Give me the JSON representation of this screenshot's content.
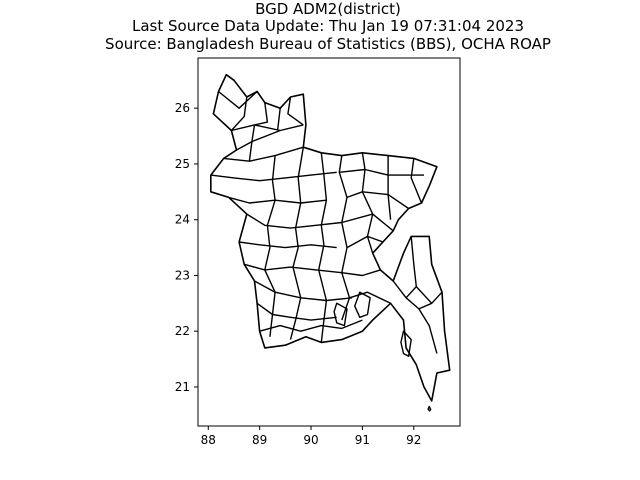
{
  "figure": {
    "title_lines": [
      "BGD ADM2(district)",
      "Last Source Data Update: Thu Jan 19 07:31:04 2023",
      "Source: Bangladesh Bureau of Statistics (BBS), OCHA ROAP"
    ]
  },
  "chart_data": {
    "type": "map",
    "title": "BGD ADM2(district)",
    "subtitle": [
      "Last Source Data Update: Thu Jan 19 07:31:04 2023",
      "Source: Bangladesh Bureau of Statistics (BBS), OCHA ROAP"
    ],
    "xlim": [
      87.8,
      92.9
    ],
    "ylim": [
      20.3,
      26.9
    ],
    "x_ticks": [
      88,
      89,
      90,
      91,
      92
    ],
    "y_ticks": [
      21,
      22,
      23,
      24,
      25,
      26
    ],
    "x_tick_labels": [
      "88",
      "89",
      "90",
      "91",
      "92"
    ],
    "y_tick_labels": [
      "21",
      "22",
      "23",
      "24",
      "25",
      "26"
    ],
    "xlabel": "",
    "ylabel": "",
    "outline": [
      [
        88.35,
        26.6
      ],
      [
        88.5,
        26.5
      ],
      [
        88.75,
        26.2
      ],
      [
        88.95,
        26.3
      ],
      [
        89.1,
        26.1
      ],
      [
        89.4,
        26.0
      ],
      [
        89.6,
        26.2
      ],
      [
        89.85,
        26.25
      ],
      [
        89.9,
        25.7
      ],
      [
        89.85,
        25.3
      ],
      [
        90.2,
        25.2
      ],
      [
        90.6,
        25.15
      ],
      [
        91.0,
        25.2
      ],
      [
        91.5,
        25.15
      ],
      [
        92.0,
        25.1
      ],
      [
        92.45,
        24.95
      ],
      [
        92.3,
        24.6
      ],
      [
        92.15,
        24.3
      ],
      [
        91.9,
        24.2
      ],
      [
        91.7,
        24.0
      ],
      [
        91.6,
        23.8
      ],
      [
        91.4,
        23.6
      ],
      [
        91.2,
        23.4
      ],
      [
        91.35,
        23.1
      ],
      [
        91.6,
        22.9
      ],
      [
        91.8,
        23.4
      ],
      [
        91.95,
        23.7
      ],
      [
        92.3,
        23.7
      ],
      [
        92.35,
        23.2
      ],
      [
        92.55,
        22.7
      ],
      [
        92.6,
        22.0
      ],
      [
        92.7,
        21.3
      ],
      [
        92.45,
        21.25
      ],
      [
        92.35,
        20.75
      ],
      [
        92.2,
        21.0
      ],
      [
        92.05,
        21.4
      ],
      [
        91.85,
        21.7
      ],
      [
        91.8,
        22.2
      ],
      [
        91.55,
        22.5
      ],
      [
        91.2,
        22.2
      ],
      [
        91.0,
        22.0
      ],
      [
        90.6,
        21.85
      ],
      [
        90.2,
        21.8
      ],
      [
        89.9,
        21.9
      ],
      [
        89.5,
        21.75
      ],
      [
        89.1,
        21.7
      ],
      [
        89.0,
        22.0
      ],
      [
        88.95,
        22.5
      ],
      [
        88.9,
        22.9
      ],
      [
        88.7,
        23.2
      ],
      [
        88.6,
        23.6
      ],
      [
        88.75,
        24.1
      ],
      [
        88.4,
        24.4
      ],
      [
        88.05,
        24.5
      ],
      [
        88.05,
        24.8
      ],
      [
        88.3,
        25.1
      ],
      [
        88.55,
        25.25
      ],
      [
        88.45,
        25.6
      ],
      [
        88.1,
        25.9
      ],
      [
        88.2,
        26.3
      ],
      [
        88.35,
        26.6
      ]
    ],
    "districts": [
      [
        [
          88.45,
          25.6
        ],
        [
          88.9,
          25.7
        ],
        [
          89.4,
          25.6
        ],
        [
          89.85,
          25.7
        ]
      ],
      [
        [
          88.2,
          26.3
        ],
        [
          88.6,
          26.0
        ],
        [
          88.95,
          26.3
        ]
      ],
      [
        [
          88.75,
          26.2
        ],
        [
          88.7,
          25.85
        ],
        [
          88.45,
          25.6
        ]
      ],
      [
        [
          89.1,
          26.1
        ],
        [
          89.15,
          25.75
        ],
        [
          88.9,
          25.7
        ]
      ],
      [
        [
          89.4,
          26.0
        ],
        [
          89.35,
          25.6
        ]
      ],
      [
        [
          89.6,
          26.2
        ],
        [
          89.55,
          25.9
        ],
        [
          89.85,
          25.7
        ]
      ],
      [
        [
          88.3,
          25.1
        ],
        [
          88.8,
          25.05
        ],
        [
          89.3,
          25.15
        ],
        [
          89.85,
          25.3
        ]
      ],
      [
        [
          88.55,
          25.25
        ],
        [
          88.85,
          25.4
        ],
        [
          89.4,
          25.6
        ]
      ],
      [
        [
          88.9,
          25.7
        ],
        [
          88.85,
          25.4
        ],
        [
          88.8,
          25.05
        ]
      ],
      [
        [
          88.05,
          24.8
        ],
        [
          88.5,
          24.75
        ],
        [
          89.0,
          24.7
        ],
        [
          89.5,
          24.75
        ],
        [
          90.0,
          24.8
        ],
        [
          90.5,
          24.85
        ]
      ],
      [
        [
          88.4,
          24.4
        ],
        [
          88.8,
          24.3
        ],
        [
          89.3,
          24.35
        ],
        [
          89.8,
          24.3
        ],
        [
          90.3,
          24.35
        ]
      ],
      [
        [
          88.75,
          24.1
        ],
        [
          89.1,
          23.9
        ],
        [
          89.6,
          23.85
        ],
        [
          90.1,
          23.9
        ],
        [
          90.6,
          23.95
        ]
      ],
      [
        [
          88.6,
          23.6
        ],
        [
          89.0,
          23.55
        ],
        [
          89.5,
          23.5
        ],
        [
          90.0,
          23.55
        ],
        [
          90.5,
          23.5
        ]
      ],
      [
        [
          88.7,
          23.2
        ],
        [
          89.1,
          23.1
        ],
        [
          89.6,
          23.15
        ],
        [
          90.1,
          23.1
        ],
        [
          90.6,
          23.05
        ]
      ],
      [
        [
          88.9,
          22.9
        ],
        [
          89.3,
          22.7
        ],
        [
          89.8,
          22.6
        ],
        [
          90.3,
          22.55
        ],
        [
          90.8,
          22.6
        ]
      ],
      [
        [
          88.95,
          22.5
        ],
        [
          89.25,
          22.3
        ],
        [
          89.6,
          22.25
        ],
        [
          90.0,
          22.2
        ],
        [
          90.5,
          22.25
        ]
      ],
      [
        [
          89.3,
          25.15
        ],
        [
          89.25,
          24.7
        ],
        [
          89.3,
          24.35
        ],
        [
          89.15,
          23.9
        ],
        [
          89.2,
          23.5
        ],
        [
          89.1,
          23.1
        ],
        [
          89.3,
          22.7
        ],
        [
          89.25,
          22.3
        ],
        [
          89.2,
          21.9
        ]
      ],
      [
        [
          89.85,
          25.3
        ],
        [
          89.75,
          24.75
        ],
        [
          89.8,
          24.3
        ],
        [
          89.7,
          23.85
        ],
        [
          89.75,
          23.5
        ],
        [
          89.65,
          23.15
        ],
        [
          89.8,
          22.6
        ],
        [
          89.7,
          22.2
        ],
        [
          89.6,
          21.85
        ]
      ],
      [
        [
          90.2,
          25.2
        ],
        [
          90.25,
          24.8
        ],
        [
          90.3,
          24.35
        ],
        [
          90.2,
          23.9
        ],
        [
          90.25,
          23.55
        ],
        [
          90.15,
          23.1
        ],
        [
          90.3,
          22.55
        ],
        [
          90.25,
          22.2
        ],
        [
          90.2,
          21.8
        ]
      ],
      [
        [
          90.6,
          25.15
        ],
        [
          90.55,
          24.85
        ],
        [
          90.7,
          24.4
        ],
        [
          90.6,
          23.95
        ],
        [
          90.7,
          23.5
        ],
        [
          90.6,
          23.05
        ],
        [
          90.75,
          22.6
        ],
        [
          90.6,
          22.2
        ]
      ],
      [
        [
          91.0,
          25.2
        ],
        [
          91.05,
          24.9
        ],
        [
          91.0,
          24.5
        ],
        [
          91.2,
          24.1
        ],
        [
          91.1,
          23.7
        ],
        [
          91.2,
          23.4
        ]
      ],
      [
        [
          90.55,
          24.85
        ],
        [
          91.05,
          24.9
        ],
        [
          91.5,
          24.8
        ],
        [
          92.2,
          24.8
        ]
      ],
      [
        [
          90.7,
          24.4
        ],
        [
          91.0,
          24.5
        ],
        [
          91.5,
          24.45
        ],
        [
          91.9,
          24.2
        ]
      ],
      [
        [
          91.5,
          25.15
        ],
        [
          91.5,
          24.8
        ],
        [
          91.5,
          24.45
        ],
        [
          91.55,
          24.0
        ]
      ],
      [
        [
          92.0,
          25.1
        ],
        [
          91.95,
          24.75
        ],
        [
          92.15,
          24.3
        ]
      ],
      [
        [
          90.6,
          23.95
        ],
        [
          91.2,
          24.1
        ],
        [
          91.6,
          23.8
        ]
      ],
      [
        [
          90.7,
          23.5
        ],
        [
          91.1,
          23.7
        ],
        [
          91.4,
          23.6
        ]
      ],
      [
        [
          90.6,
          23.05
        ],
        [
          91.0,
          23.0
        ],
        [
          91.35,
          23.1
        ]
      ],
      [
        [
          90.75,
          22.6
        ],
        [
          91.1,
          22.7
        ],
        [
          91.55,
          22.5
        ]
      ],
      [
        [
          91.6,
          22.9
        ],
        [
          91.85,
          22.6
        ],
        [
          92.1,
          22.4
        ],
        [
          92.3,
          22.1
        ],
        [
          92.45,
          21.6
        ]
      ],
      [
        [
          91.95,
          23.7
        ],
        [
          92.0,
          23.2
        ],
        [
          92.05,
          22.8
        ],
        [
          92.35,
          22.5
        ],
        [
          92.55,
          22.7
        ]
      ],
      [
        [
          91.85,
          22.6
        ],
        [
          92.05,
          22.8
        ]
      ],
      [
        [
          92.1,
          22.4
        ],
        [
          92.35,
          22.5
        ]
      ],
      [
        [
          89.0,
          22.0
        ],
        [
          89.4,
          22.1
        ],
        [
          89.8,
          22.0
        ],
        [
          90.2,
          22.1
        ],
        [
          90.6,
          22.05
        ],
        [
          91.0,
          22.2
        ]
      ]
    ],
    "islands": [
      [
        [
          90.95,
          22.7
        ],
        [
          91.15,
          22.6
        ],
        [
          91.1,
          22.3
        ],
        [
          90.95,
          22.25
        ],
        [
          90.85,
          22.45
        ],
        [
          90.95,
          22.7
        ]
      ],
      [
        [
          90.5,
          22.5
        ],
        [
          90.7,
          22.4
        ],
        [
          90.65,
          22.1
        ],
        [
          90.5,
          22.15
        ],
        [
          90.45,
          22.35
        ],
        [
          90.5,
          22.5
        ]
      ],
      [
        [
          91.8,
          22.0
        ],
        [
          91.95,
          21.85
        ],
        [
          91.9,
          21.55
        ],
        [
          91.8,
          21.6
        ],
        [
          91.75,
          21.8
        ],
        [
          91.8,
          22.0
        ]
      ],
      [
        [
          92.3,
          20.65
        ],
        [
          92.33,
          20.6
        ],
        [
          92.31,
          20.57
        ],
        [
          92.28,
          20.6
        ],
        [
          92.3,
          20.65
        ]
      ]
    ]
  }
}
